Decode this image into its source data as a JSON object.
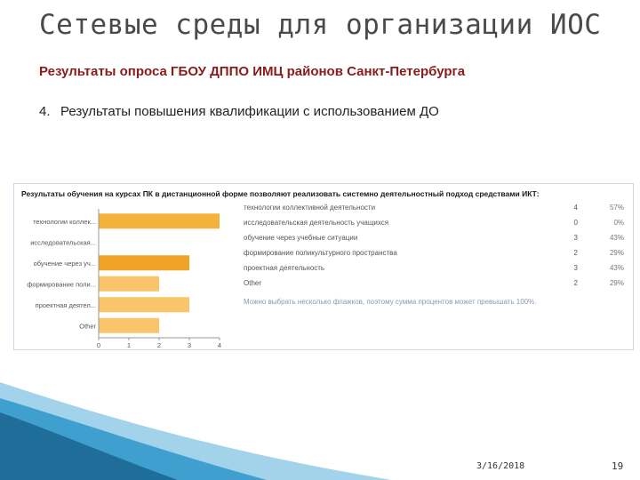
{
  "slide": {
    "title": "Сетевые среды для организации ИОС",
    "subtitle": "Результаты опроса ГБОУ ДППО ИМЦ районов Санкт-Петербурга",
    "item_number": "4.",
    "item_text": "Результаты повышения квалификации с использованием ДО",
    "date": "3/16/2018",
    "page": "19"
  },
  "panel": {
    "title": "Результаты обучения на курсах ПК в дистанционной форме позволяют реализовать системно деятельностный подход средствами ИКТ:",
    "note": "Можно выбрать несколько флажков, поэтому сумма процентов может превышать 100%."
  },
  "responses": [
    {
      "label": "технологии коллективной деятельности",
      "count": "4",
      "percent": "57%"
    },
    {
      "label": "исследовательская деятельность учащихся",
      "count": "0",
      "percent": "0%"
    },
    {
      "label": "обучение через учебные ситуации",
      "count": "3",
      "percent": "43%"
    },
    {
      "label": "формирование поликультурного пространства",
      "count": "2",
      "percent": "29%"
    },
    {
      "label": "проектная деятельность",
      "count": "3",
      "percent": "43%"
    },
    {
      "label": "Other",
      "count": "2",
      "percent": "29%"
    }
  ],
  "chart_data": {
    "type": "bar",
    "orientation": "horizontal",
    "categories": [
      "технологии коллек...",
      "исследовательская...",
      "обучение через уч...",
      "формирование поли...",
      "проектная деятел...",
      "Other"
    ],
    "values": [
      4,
      0,
      3,
      2,
      3,
      2
    ],
    "highlight_index": 2,
    "xlim": [
      0,
      4
    ],
    "xticks": [
      "0",
      "1",
      "2",
      "3",
      "4"
    ],
    "colors": {
      "bar": "#f9c46a",
      "bar_highlight": "#f0a326",
      "bar_first": "#f5b23a",
      "axis": "#999999"
    },
    "grid": false
  },
  "decor": {
    "colors": [
      "#1f6e99",
      "#3f9fcf",
      "#a3d3ea"
    ]
  }
}
